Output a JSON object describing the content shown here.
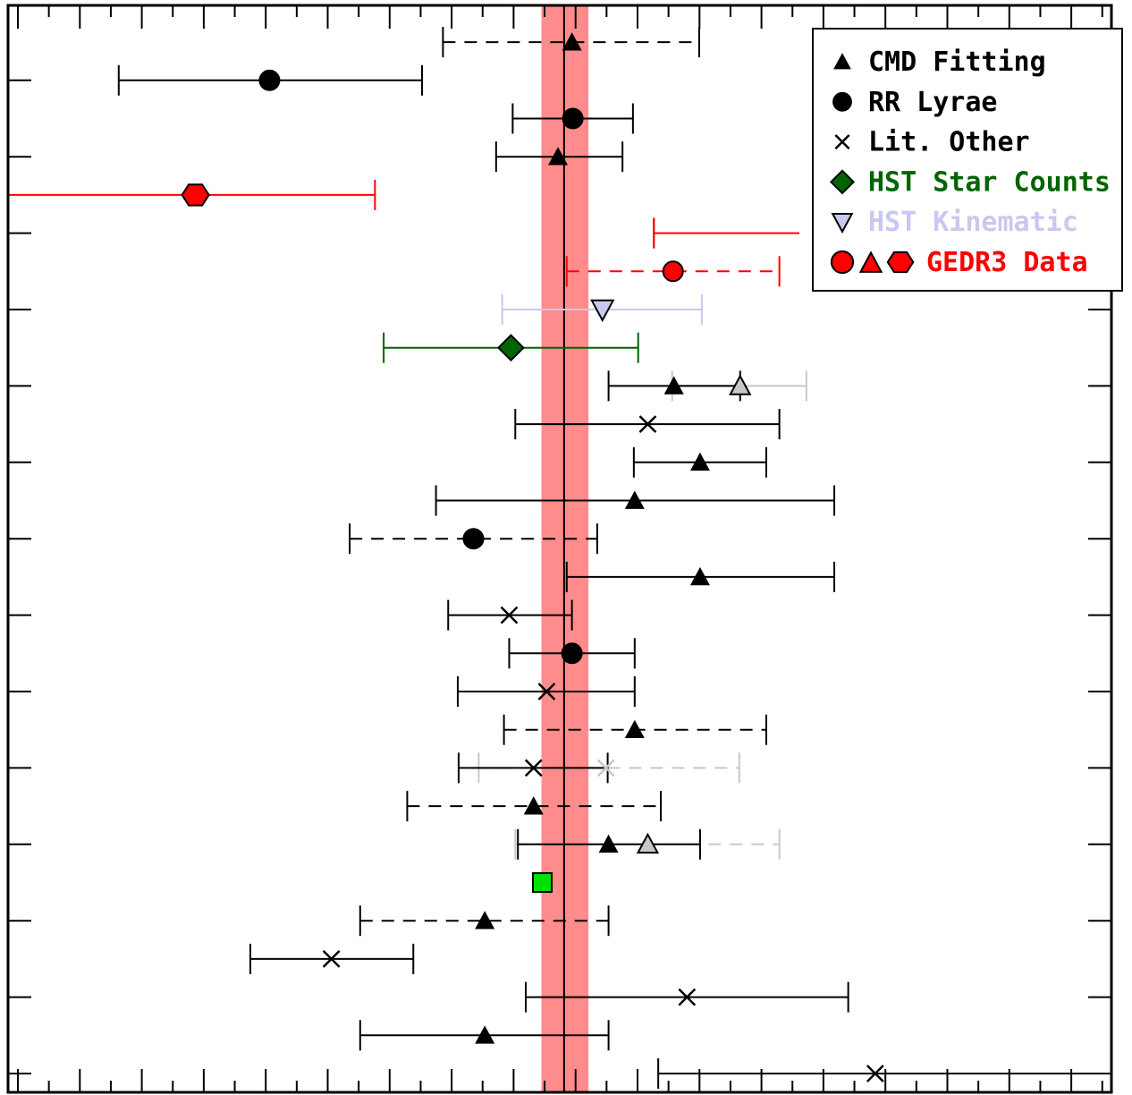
{
  "chart_data": {
    "type": "scatter",
    "title": "",
    "xlabel": "",
    "ylabel": "",
    "xlim": [
      0,
      126.6
    ],
    "ylim": [
      0,
      28.5
    ],
    "grid": false,
    "legend_placement": "top-right",
    "reference": {
      "value": 63.8,
      "band": [
        61.2,
        66.6
      ],
      "line_color": "#000000",
      "band_color": "#ff8c8c"
    },
    "legend": [
      {
        "marker": "triangle",
        "label": "CMD Fitting",
        "color": "#000000"
      },
      {
        "marker": "circle",
        "label": "RR Lyrae",
        "color": "#000000"
      },
      {
        "marker": "cross",
        "label": "Lit. Other",
        "color": "#000000"
      },
      {
        "marker": "diamond",
        "label": "HST Star Counts",
        "color": "#006400"
      },
      {
        "marker": "triangle-down",
        "label": "HST Kinematic",
        "color": "#c8c8f0"
      },
      {
        "marker": "gedr3-group",
        "label": "GEDR3 Data",
        "color": "#ff0000"
      }
    ],
    "points": [
      {
        "row": 27,
        "x": 64.7,
        "lo": 49.9,
        "hi": 79.3,
        "marker": "triangle",
        "color": "#000000",
        "dashed": true
      },
      {
        "row": 26,
        "x": 30.0,
        "lo": 12.7,
        "hi": 47.5,
        "marker": "circle",
        "color": "#000000",
        "dashed": false
      },
      {
        "row": 25,
        "x": 64.8,
        "lo": 57.9,
        "hi": 71.7,
        "marker": "circle",
        "color": "#000000",
        "dashed": false
      },
      {
        "row": 24,
        "x": 63.1,
        "lo": 56.0,
        "hi": 70.5,
        "marker": "triangle",
        "color": "#000000",
        "dashed": false
      },
      {
        "row": 23,
        "x": 21.5,
        "lo": 0.0,
        "hi": 42.1,
        "marker": "hexagon",
        "color": "#ff0000",
        "dashed": false
      },
      {
        "row": 22,
        "x": null,
        "lo": 74.1,
        "hi": 90.8,
        "marker": "none",
        "color": "#ff0000",
        "dashed": false
      },
      {
        "row": 21,
        "x": 76.3,
        "lo": 64.1,
        "hi": 88.5,
        "marker": "circle",
        "color": "#ff0000",
        "dashed": true
      },
      {
        "row": 20,
        "x": 68.2,
        "lo": 56.7,
        "hi": 79.6,
        "marker": "triangle-down",
        "color": "#c8c8f0",
        "dashed": false
      },
      {
        "row": 19,
        "x": 57.7,
        "lo": 43.1,
        "hi": 72.3,
        "marker": "diamond",
        "color": "#006400",
        "dashed": false
      },
      {
        "row": 18,
        "x": 84.0,
        "lo": 76.2,
        "hi": 91.6,
        "marker": "triangle",
        "color": "#c8c8c8",
        "dashed": false
      },
      {
        "row": 18,
        "x": 76.4,
        "lo": 68.9,
        "hi": 84.0,
        "marker": "triangle",
        "color": "#000000",
        "dashed": false
      },
      {
        "row": 17,
        "x": 73.4,
        "lo": 58.2,
        "hi": 88.5,
        "marker": "cross",
        "color": "#000000",
        "dashed": false
      },
      {
        "row": 16,
        "x": 79.4,
        "lo": 71.8,
        "hi": 87.0,
        "marker": "triangle",
        "color": "#000000",
        "dashed": false
      },
      {
        "row": 15,
        "x": 71.9,
        "lo": 49.1,
        "hi": 94.8,
        "marker": "triangle",
        "color": "#000000",
        "dashed": false
      },
      {
        "row": 14,
        "x": 53.4,
        "lo": 39.2,
        "hi": 67.6,
        "marker": "circle",
        "color": "#000000",
        "dashed": true
      },
      {
        "row": 13,
        "x": 79.4,
        "lo": 64.1,
        "hi": 94.8,
        "marker": "triangle",
        "color": "#000000",
        "dashed": false
      },
      {
        "row": 12,
        "x": 57.5,
        "lo": 50.5,
        "hi": 64.7,
        "marker": "cross",
        "color": "#000000",
        "dashed": false
      },
      {
        "row": 11,
        "x": 64.7,
        "lo": 57.5,
        "hi": 71.9,
        "marker": "circle",
        "color": "#000000",
        "dashed": false
      },
      {
        "row": 10,
        "x": 61.8,
        "lo": 51.6,
        "hi": 71.9,
        "marker": "cross",
        "color": "#000000",
        "dashed": false
      },
      {
        "row": 9,
        "x": 71.9,
        "lo": 56.9,
        "hi": 87.0,
        "marker": "triangle",
        "color": "#000000",
        "dashed": true
      },
      {
        "row": 8,
        "x": 68.6,
        "lo": 54.0,
        "hi": 83.9,
        "marker": "cross",
        "color": "#c8c8c8",
        "dashed": true
      },
      {
        "row": 8,
        "x": 60.3,
        "lo": 51.7,
        "hi": 68.8,
        "marker": "cross",
        "color": "#000000",
        "dashed": false
      },
      {
        "row": 7,
        "x": 60.3,
        "lo": 45.8,
        "hi": 74.9,
        "marker": "triangle",
        "color": "#000000",
        "dashed": true
      },
      {
        "row": 6,
        "x": 73.4,
        "lo": 58.2,
        "hi": 88.5,
        "marker": "triangle",
        "color": "#c8c8c8",
        "dashed": true
      },
      {
        "row": 6,
        "x": 68.9,
        "lo": 58.5,
        "hi": 79.4,
        "marker": "triangle",
        "color": "#000000",
        "dashed": false
      },
      {
        "row": 5,
        "x": 61.3,
        "lo": null,
        "hi": null,
        "marker": "square",
        "color": "#00e000",
        "dashed": false
      },
      {
        "row": 4,
        "x": 54.7,
        "lo": 40.4,
        "hi": 68.9,
        "marker": "triangle",
        "color": "#000000",
        "dashed": true
      },
      {
        "row": 3,
        "x": 37.1,
        "lo": 27.8,
        "hi": 46.5,
        "marker": "cross",
        "color": "#000000",
        "dashed": false
      },
      {
        "row": 2,
        "x": 77.9,
        "lo": 59.4,
        "hi": 96.4,
        "marker": "cross",
        "color": "#000000",
        "dashed": false
      },
      {
        "row": 1,
        "x": 54.7,
        "lo": 40.4,
        "hi": 68.9,
        "marker": "triangle",
        "color": "#000000",
        "dashed": false
      },
      {
        "row": 0,
        "x": 99.5,
        "lo": 74.6,
        "hi": 126.6,
        "marker": "cross",
        "color": "#000000",
        "dashed": false
      }
    ]
  }
}
